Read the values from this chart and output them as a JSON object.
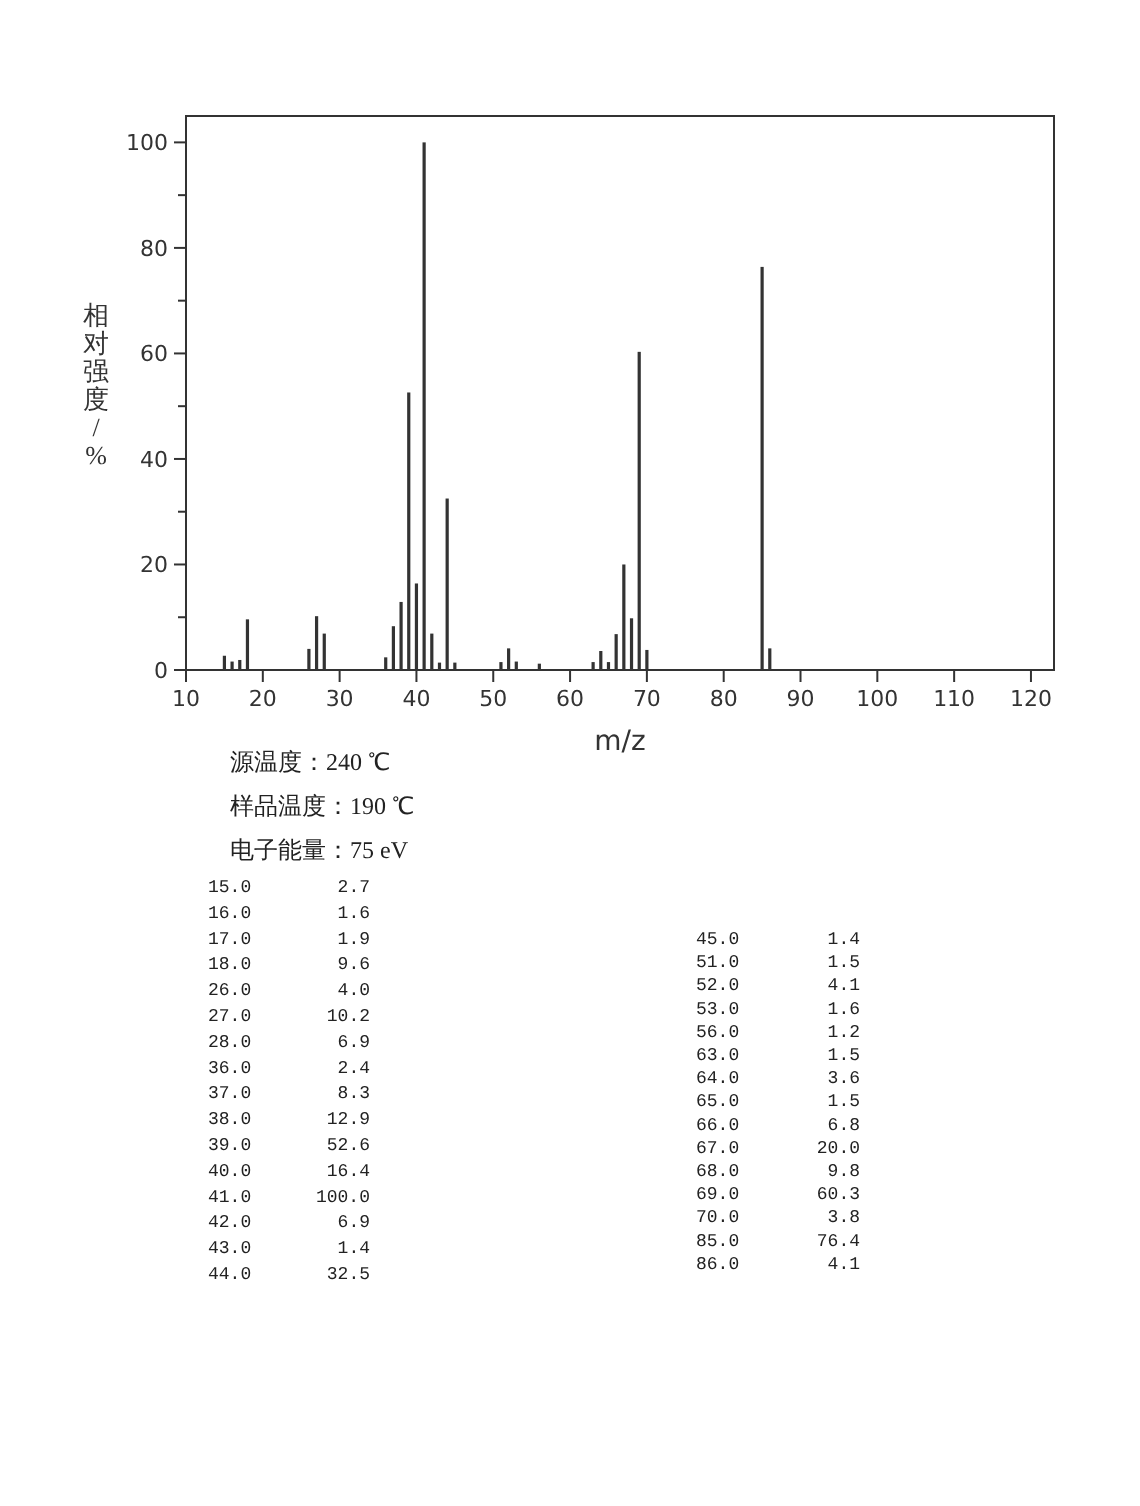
{
  "chart_data": {
    "type": "bar",
    "xlabel": "m/z",
    "ylabel": "相对强度/%",
    "x": [
      15,
      16,
      17,
      18,
      26,
      27,
      28,
      36,
      37,
      38,
      39,
      40,
      41,
      42,
      43,
      44,
      45,
      51,
      52,
      53,
      56,
      63,
      64,
      65,
      66,
      67,
      68,
      69,
      70,
      85,
      86
    ],
    "values": [
      2.7,
      1.6,
      1.9,
      9.6,
      4.0,
      10.2,
      6.9,
      2.4,
      8.3,
      12.9,
      52.6,
      16.4,
      100.0,
      6.9,
      1.4,
      32.5,
      1.4,
      1.5,
      4.1,
      1.6,
      1.2,
      1.5,
      3.6,
      1.5,
      6.8,
      20.0,
      9.8,
      60.3,
      3.8,
      76.4,
      4.1
    ],
    "color": "#333333",
    "xlim": [
      10,
      123
    ],
    "ylim": [
      0,
      105
    ],
    "xticks": [
      10,
      20,
      30,
      40,
      50,
      60,
      70,
      80,
      90,
      100,
      110,
      120
    ],
    "yticks": [
      0,
      {
        "value": 10,
        "label": null
      },
      20,
      {
        "value": 30,
        "label": null
      },
      40,
      {
        "value": 50,
        "label": null
      },
      60,
      {
        "value": 70,
        "label": null
      },
      80,
      {
        "value": 90,
        "label": null
      },
      100
    ],
    "grid": false,
    "annotations": [
      "源温度：240 ℃",
      "样品温度：190 ℃",
      "电子能量：75 eV",
      "15.0",
      "2.7",
      "16.0",
      "1.6",
      "17.0",
      "1.9",
      "18.0",
      "9.6",
      "26.0",
      "4.0",
      "27.0",
      "10.2",
      "28.0",
      "6.9",
      "36.0",
      "2.4",
      "37.0",
      "8.3",
      "38.0",
      "12.9",
      "39.0",
      "52.6",
      "40.0",
      "16.4",
      "41.0",
      "100.0",
      "42.0",
      "6.9",
      "43.0",
      "1.4",
      "44.0",
      "32.5",
      "45.0",
      "1.4",
      "51.0",
      "1.5",
      "52.0",
      "4.1",
      "53.0",
      "1.6",
      "56.0",
      "1.2",
      "63.0",
      "1.5",
      "64.0",
      "3.6",
      "65.0",
      "1.5",
      "66.0",
      "6.8",
      "67.0",
      "20.0",
      "68.0",
      "9.8",
      "69.0",
      "60.3",
      "70.0",
      "3.8",
      "85.0",
      "76.4",
      "86.0",
      "4.1"
    ]
  }
}
